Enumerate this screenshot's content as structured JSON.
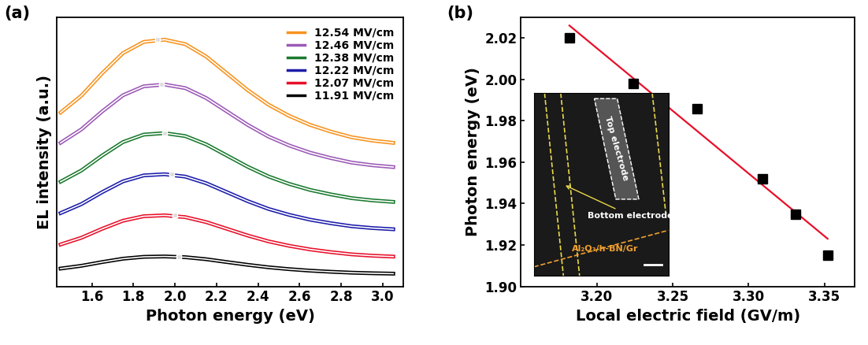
{
  "chart_data": [
    {
      "type": "line",
      "panel_label": "(a)",
      "x_label": "Photon energy (eV)",
      "y_label": "EL intensity (a.u.)",
      "x": [
        1.45,
        1.55,
        1.65,
        1.75,
        1.85,
        1.95,
        2.05,
        2.15,
        2.25,
        2.35,
        2.45,
        2.55,
        2.65,
        2.75,
        2.85,
        2.95,
        3.05
      ],
      "xlim": [
        1.43,
        3.1
      ],
      "xticks": [
        {
          "value": 1.6,
          "label": "1.6"
        },
        {
          "value": 1.8,
          "label": "1.8"
        },
        {
          "value": 2.0,
          "label": "2.0"
        },
        {
          "value": 2.2,
          "label": "2.2"
        },
        {
          "value": 2.4,
          "label": "2.4"
        },
        {
          "value": 2.6,
          "label": "2.6"
        },
        {
          "value": 2.8,
          "label": "2.8"
        },
        {
          "value": 3.0,
          "label": "3.0"
        }
      ],
      "ylim": [
        0,
        36
      ],
      "tick_labels": "x",
      "legend": "upper right",
      "series": [
        {
          "name": "11.91 MV/cm",
          "color": "#000000",
          "peak_x": 2.02,
          "peak_y": 4.0,
          "values": [
            2.38,
            2.75,
            3.25,
            3.7,
            3.95,
            4.0,
            3.9,
            3.63,
            3.25,
            2.88,
            2.55,
            2.3,
            2.1,
            1.95,
            1.83,
            1.75,
            1.7
          ]
        },
        {
          "name": "12.07 MV/cm",
          "color": "#e8102a",
          "peak_x": 2.0,
          "peak_y": 9.5,
          "values": [
            5.6,
            6.5,
            7.7,
            8.78,
            9.38,
            9.5,
            9.26,
            8.6,
            7.7,
            6.8,
            6.02,
            5.42,
            4.94,
            4.58,
            4.28,
            4.1,
            3.98
          ]
        },
        {
          "name": "12.22 MV/cm",
          "color": "#1c1caa",
          "peak_x": 1.985,
          "peak_y": 15.0,
          "values": [
            9.8,
            11,
            12.6,
            14.04,
            14.84,
            15,
            14.68,
            13.8,
            12.6,
            11.4,
            10.36,
            9.56,
            8.92,
            8.44,
            8.04,
            7.8,
            7.64
          ]
        },
        {
          "name": "12.38 MV/cm",
          "color": "#1a7a2e",
          "peak_x": 1.95,
          "peak_y": 20.5,
          "values": [
            14,
            15.5,
            17.5,
            19.3,
            20.3,
            20.5,
            20.1,
            19,
            17.5,
            16,
            14.7,
            13.7,
            12.9,
            12.3,
            11.8,
            11.5,
            11.3
          ]
        },
        {
          "name": "12.46 MV/cm",
          "color": "#9b59b6",
          "peak_x": 1.935,
          "peak_y": 27.0,
          "values": [
            19.2,
            21,
            23.4,
            25.56,
            26.76,
            27,
            26.52,
            25.2,
            23.4,
            21.6,
            20.04,
            18.84,
            17.88,
            17.16,
            16.56,
            16.2,
            15.96
          ]
        },
        {
          "name": "12.54 MV/cm",
          "color": "#f7931e",
          "peak_x": 1.915,
          "peak_y": 33.0,
          "values": [
            23.25,
            25.5,
            28.5,
            31.2,
            32.7,
            33,
            32.4,
            30.75,
            28.5,
            26.25,
            24.3,
            22.8,
            21.6,
            20.7,
            19.95,
            19.5,
            19.2
          ]
        }
      ]
    },
    {
      "type": "scatter",
      "panel_label": "(b)",
      "x_label": "Local electric field (GV/m)",
      "y_label": "Photon energy (eV)",
      "xlim": [
        3.15,
        3.37
      ],
      "xticks": [
        {
          "value": 3.2,
          "label": "3.20"
        },
        {
          "value": 3.25,
          "label": "3.25"
        },
        {
          "value": 3.3,
          "label": "3.30"
        },
        {
          "value": 3.35,
          "label": "3.35"
        }
      ],
      "ylim": [
        1.9,
        2.03
      ],
      "yticks": [
        {
          "value": 1.9,
          "label": "1.90"
        },
        {
          "value": 1.92,
          "label": "1.92"
        },
        {
          "value": 1.94,
          "label": "1.94"
        },
        {
          "value": 1.96,
          "label": "1.96"
        },
        {
          "value": 1.98,
          "label": "1.98"
        },
        {
          "value": 2.0,
          "label": "2.00"
        },
        {
          "value": 2.02,
          "label": "2.02"
        }
      ],
      "series": [
        {
          "type": "scatter",
          "color": "#000000",
          "marker": "s",
          "x": [
            3.182,
            3.224,
            3.266,
            3.309,
            3.331,
            3.352
          ],
          "values": [
            2.02,
            1.998,
            1.986,
            1.952,
            1.935,
            1.915
          ]
        },
        {
          "type": "line",
          "color": "#e8102a",
          "line_style": "solid",
          "x": [
            3.182,
            3.352
          ],
          "values": [
            2.026,
            1.923
          ]
        }
      ],
      "inset": {
        "texts": [
          "Top electrode",
          "Bottom electrode",
          "Al₂O₃/h-BN/Gr"
        ]
      }
    }
  ]
}
